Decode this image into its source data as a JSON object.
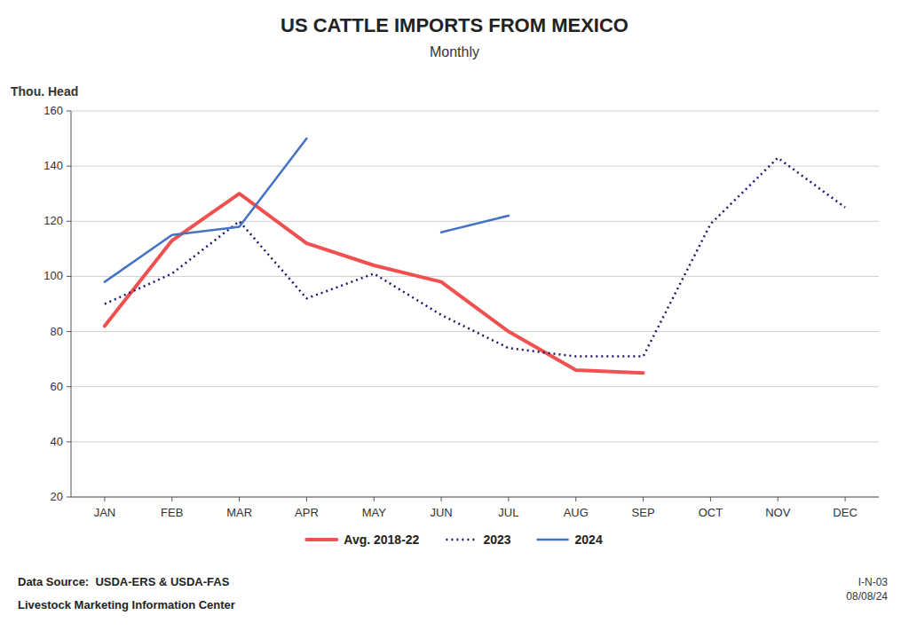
{
  "chart_data": {
    "type": "line",
    "title": "US CATTLE IMPORTS FROM MEXICO",
    "subtitle": "Monthly",
    "y_label": "Thou. Head",
    "categories": [
      "JAN",
      "FEB",
      "MAR",
      "APR",
      "MAY",
      "JUN",
      "JUL",
      "AUG",
      "SEP",
      "OCT",
      "NOV",
      "DEC"
    ],
    "series": [
      {
        "name": "Avg. 2018-22",
        "color": "#F05050",
        "line_style": "solid",
        "values": [
          82,
          113,
          130,
          112,
          104,
          98,
          80,
          66,
          65,
          null,
          null,
          null
        ]
      },
      {
        "name": "2023",
        "color": "#1a1a6e",
        "line_style": "dotted",
        "values": [
          90,
          101,
          120,
          92,
          101,
          86,
          74,
          71,
          71,
          119,
          143,
          125
        ]
      },
      {
        "name": "2024",
        "color": "#4472C4",
        "line_style": "solid",
        "values": [
          98,
          115,
          118,
          150,
          null,
          116,
          122,
          null,
          null,
          null,
          null,
          null
        ]
      }
    ],
    "ylim": [
      20,
      160
    ],
    "yticks": [
      20,
      40,
      60,
      80,
      100,
      120,
      140,
      160
    ],
    "grid": true,
    "legend": "bottom",
    "annotations": [
      "Data Source:  USDA-ERS & USDA-FAS",
      "Livestock Marketing Information Center",
      "I-N-03\n08/08/24"
    ]
  }
}
